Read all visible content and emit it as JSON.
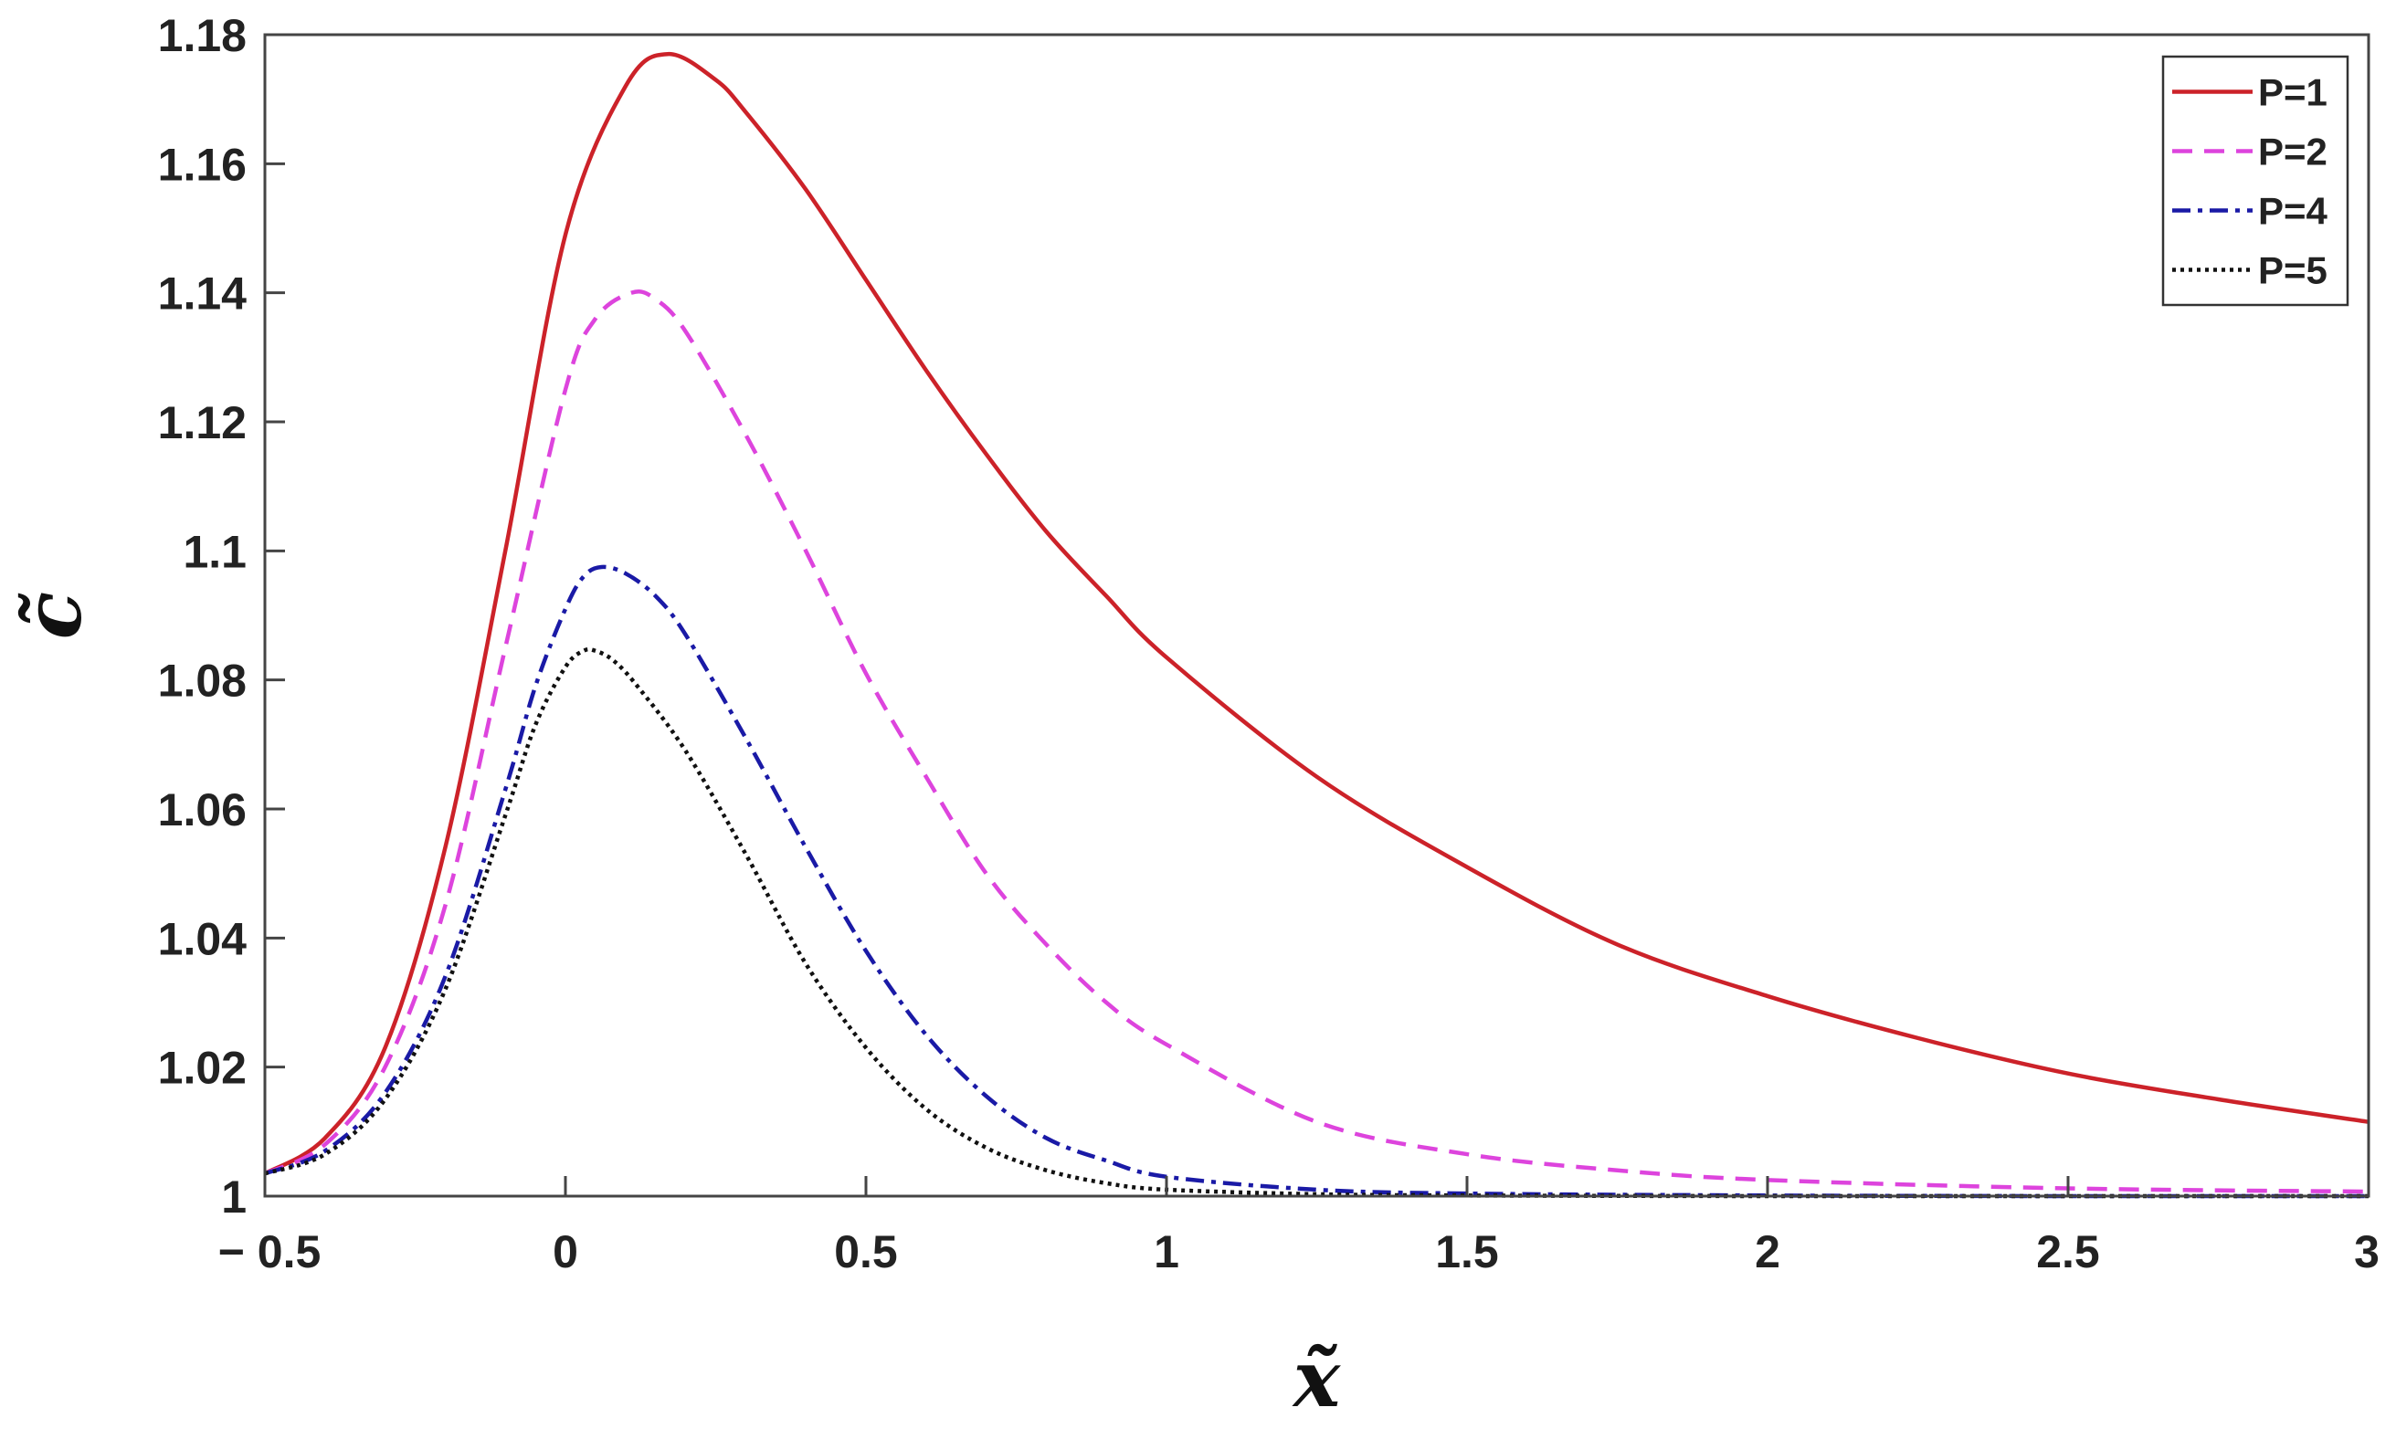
{
  "chart_data": {
    "type": "line",
    "title": "",
    "xlabel": "x̃",
    "ylabel": "c̃",
    "xlim": [
      -0.5,
      3
    ],
    "ylim": [
      1,
      1.18
    ],
    "xticks": [
      -0.5,
      0,
      0.5,
      1,
      1.5,
      2,
      2.5,
      3
    ],
    "xtick_labels": [
      "− 0.5",
      "0",
      "0.5",
      "1",
      "1.5",
      "2",
      "2.5",
      "3"
    ],
    "yticks": [
      1,
      1.02,
      1.04,
      1.06,
      1.08,
      1.1,
      1.12,
      1.14,
      1.16,
      1.18
    ],
    "ytick_labels": [
      "1",
      "1.02",
      "1.04",
      "1.06",
      "1.08",
      "1.1",
      "1.12",
      "1.14",
      "1.16",
      "1.18"
    ],
    "grid": false,
    "legend_position": "top-right",
    "series": [
      {
        "name": "P=1",
        "color": "#cc2229",
        "dash": "solid",
        "x": [
          -0.5,
          -0.4,
          -0.3,
          -0.2,
          -0.1,
          0,
          0.1,
          0.17,
          0.25,
          0.3,
          0.4,
          0.5,
          0.6,
          0.7,
          0.8,
          0.9,
          1.0,
          1.25,
          1.5,
          1.75,
          2.0,
          2.25,
          2.5,
          2.75,
          3.0
        ],
        "y": [
          1.0035,
          1.009,
          1.023,
          1.054,
          1.1,
          1.149,
          1.172,
          1.177,
          1.173,
          1.168,
          1.156,
          1.142,
          1.128,
          1.115,
          1.103,
          1.093,
          1.0835,
          1.065,
          1.051,
          1.039,
          1.031,
          1.0245,
          1.019,
          1.015,
          1.0115
        ]
      },
      {
        "name": "P=2",
        "color": "#dd44dd",
        "dash": "dashed",
        "x": [
          -0.5,
          -0.4,
          -0.3,
          -0.2,
          -0.1,
          0,
          0.05,
          0.11,
          0.15,
          0.2,
          0.3,
          0.4,
          0.5,
          0.6,
          0.7,
          0.8,
          0.9,
          1.0,
          1.25,
          1.5,
          1.75,
          2.0,
          2.5,
          3.0
        ],
        "y": [
          1.0035,
          1.008,
          1.02,
          1.045,
          1.085,
          1.125,
          1.136,
          1.14,
          1.139,
          1.134,
          1.118,
          1.1,
          1.081,
          1.065,
          1.05,
          1.039,
          1.03,
          1.0235,
          1.0115,
          1.0065,
          1.004,
          1.0025,
          1.0012,
          1.0007
        ]
      },
      {
        "name": "P=4",
        "color": "#1a1aa6",
        "dash": "dashdot",
        "x": [
          -0.5,
          -0.4,
          -0.3,
          -0.2,
          -0.1,
          -0.05,
          0,
          0.03,
          0.06,
          0.1,
          0.15,
          0.2,
          0.3,
          0.4,
          0.5,
          0.6,
          0.7,
          0.8,
          0.9,
          1.0,
          1.25,
          1.5,
          2.0,
          2.5,
          3.0
        ],
        "y": [
          1.0035,
          1.007,
          1.016,
          1.034,
          1.063,
          1.079,
          1.091,
          1.096,
          1.0975,
          1.0965,
          1.093,
          1.087,
          1.071,
          1.054,
          1.038,
          1.025,
          1.0155,
          1.009,
          1.0055,
          1.003,
          1.001,
          1.0004,
          1.0001,
          1.0,
          1.0
        ]
      },
      {
        "name": "P=5",
        "color": "#111111",
        "dash": "dotted",
        "x": [
          -0.5,
          -0.4,
          -0.3,
          -0.2,
          -0.1,
          -0.05,
          0,
          0.03,
          0.05,
          0.08,
          0.12,
          0.2,
          0.3,
          0.4,
          0.5,
          0.6,
          0.7,
          0.8,
          0.9,
          1.0,
          1.25,
          1.5,
          2.0,
          2.5,
          3.0
        ],
        "y": [
          1.0035,
          1.0065,
          1.015,
          1.032,
          1.059,
          1.073,
          1.082,
          1.0845,
          1.0845,
          1.083,
          1.079,
          1.069,
          1.053,
          1.036,
          1.023,
          1.0135,
          1.0075,
          1.004,
          1.002,
          1.001,
          1.0003,
          1.0001,
          1.0,
          1.0,
          1.0
        ]
      }
    ]
  }
}
